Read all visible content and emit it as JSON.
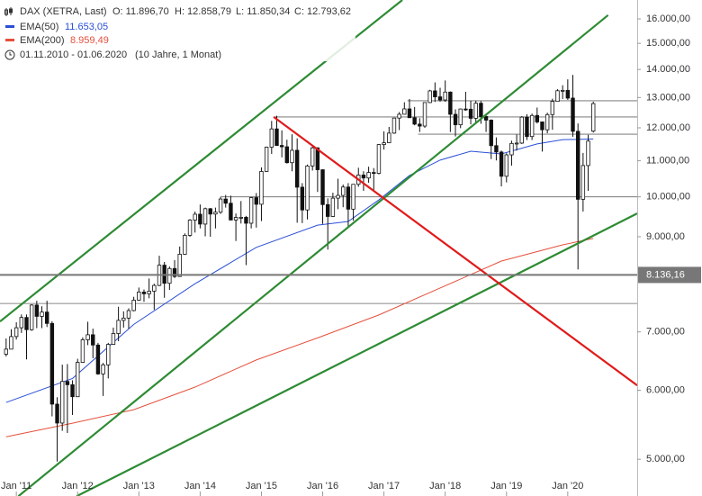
{
  "chart_data": {
    "type": "candlestick",
    "header": {
      "title": "DAX (XETRA, Last)",
      "o": "O: 11.896,70",
      "h": "H: 12.858,79",
      "l": "L: 11.850,34",
      "c": "C: 12.793,62",
      "range": "01.11.2010 - 01.06.2020",
      "period": "(10 Jahre, 1 Monat)"
    },
    "log_scale": true,
    "xlim": [
      -1.2,
      123.6
    ],
    "ylim": [
      4770,
      16820
    ],
    "xticks": [
      {
        "value": 2,
        "label": "Jan '11"
      },
      {
        "value": 14,
        "label": "Jan '12"
      },
      {
        "value": 26,
        "label": "Jan '13"
      },
      {
        "value": 38,
        "label": "Jan '14"
      },
      {
        "value": 50,
        "label": "Jan '15"
      },
      {
        "value": 62,
        "label": "Jan '16"
      },
      {
        "value": 74,
        "label": "Jan '17"
      },
      {
        "value": 86,
        "label": "Jan '18"
      },
      {
        "value": 98,
        "label": "Jan '19"
      },
      {
        "value": 110,
        "label": "Jan '20"
      }
    ],
    "yticks": [
      {
        "value": 5000,
        "label": "5.000,00"
      },
      {
        "value": 6000,
        "label": "6.000,00"
      },
      {
        "value": 7000,
        "label": "7.000,00"
      },
      {
        "value": 9000,
        "label": "9.000,00"
      },
      {
        "value": 10000,
        "label": "10.000,00"
      },
      {
        "value": 11000,
        "label": "11.000,00"
      },
      {
        "value": 12000,
        "label": "12.000,00"
      },
      {
        "value": 13000,
        "label": "13.000,00"
      },
      {
        "value": 14000,
        "label": "14.000,00"
      },
      {
        "value": 15000,
        "label": "15.000,00"
      },
      {
        "value": 16000,
        "label": "16.000,00"
      }
    ],
    "up_color": "#ffffff",
    "down_color": "#111111",
    "ohlc": [
      [
        6600,
        6880,
        6560,
        6688
      ],
      [
        6688,
        7050,
        6690,
        6914
      ],
      [
        6914,
        7180,
        6860,
        7077
      ],
      [
        7077,
        7330,
        6980,
        7272
      ],
      [
        7272,
        7330,
        6510,
        7041
      ],
      [
        7041,
        7530,
        7020,
        7514
      ],
      [
        7514,
        7600,
        7070,
        7293
      ],
      [
        7293,
        7490,
        7070,
        7376
      ],
      [
        7376,
        7600,
        7090,
        7158
      ],
      [
        7158,
        7200,
        5600,
        5784
      ],
      [
        5784,
        5890,
        4970,
        5502
      ],
      [
        5502,
        6420,
        5390,
        6141
      ],
      [
        6141,
        6430,
        5360,
        6088
      ],
      [
        6088,
        6160,
        5620,
        5898
      ],
      [
        5898,
        6520,
        5900,
        6458
      ],
      [
        6458,
        6900,
        6450,
        6856
      ],
      [
        6856,
        7190,
        6760,
        6947
      ],
      [
        6947,
        7060,
        6530,
        6761
      ],
      [
        6761,
        6800,
        6250,
        6264
      ],
      [
        6264,
        6450,
        5910,
        6416
      ],
      [
        6416,
        6800,
        6190,
        6772
      ],
      [
        6772,
        7080,
        6790,
        6970
      ],
      [
        6970,
        7480,
        6830,
        7216
      ],
      [
        7216,
        7390,
        7080,
        7260
      ],
      [
        7260,
        7450,
        7060,
        7405
      ],
      [
        7405,
        7680,
        7390,
        7612
      ],
      [
        7612,
        7870,
        7600,
        7776
      ],
      [
        7776,
        7830,
        7580,
        7741
      ],
      [
        7741,
        8060,
        7650,
        7795
      ],
      [
        7795,
        7950,
        7420,
        7914
      ],
      [
        7914,
        8560,
        7900,
        8349
      ],
      [
        8349,
        8420,
        7660,
        7959
      ],
      [
        7959,
        8320,
        7820,
        8276
      ],
      [
        8276,
        8460,
        8070,
        8103
      ],
      [
        8103,
        8770,
        8100,
        8594
      ],
      [
        8594,
        9080,
        8580,
        9033
      ],
      [
        9033,
        9430,
        9000,
        9405
      ],
      [
        9405,
        9620,
        9100,
        9552
      ],
      [
        9552,
        9800,
        9200,
        9306
      ],
      [
        9306,
        9720,
        9010,
        9692
      ],
      [
        9692,
        9710,
        9000,
        9556
      ],
      [
        9556,
        9720,
        9200,
        9603
      ],
      [
        9603,
        10000,
        9560,
        9943
      ],
      [
        9943,
        10050,
        9720,
        9833
      ],
      [
        9833,
        10030,
        9400,
        9407
      ],
      [
        9407,
        9570,
        8900,
        9470
      ],
      [
        9470,
        9890,
        9320,
        9474
      ],
      [
        9474,
        9510,
        8350,
        9327
      ],
      [
        9327,
        10000,
        9200,
        9980
      ],
      [
        9980,
        10100,
        9220,
        9806
      ],
      [
        9806,
        10810,
        9380,
        10694
      ],
      [
        10694,
        11420,
        10690,
        11402
      ],
      [
        11402,
        12220,
        11200,
        11966
      ],
      [
        11966,
        12390,
        11450,
        11454
      ],
      [
        11454,
        11920,
        11100,
        11414
      ],
      [
        11414,
        11630,
        10920,
        10945
      ],
      [
        10945,
        11800,
        10700,
        11309
      ],
      [
        11309,
        11670,
        9340,
        10259
      ],
      [
        10259,
        10370,
        9330,
        9660
      ],
      [
        9660,
        10890,
        9420,
        10850
      ],
      [
        10850,
        11430,
        10720,
        11382
      ],
      [
        11382,
        11400,
        10130,
        10743
      ],
      [
        10743,
        10750,
        9310,
        9798
      ],
      [
        9798,
        9960,
        8700,
        9495
      ],
      [
        9495,
        10110,
        9480,
        9966
      ],
      [
        9966,
        10490,
        9680,
        10039
      ],
      [
        10039,
        10330,
        9730,
        10263
      ],
      [
        10263,
        10370,
        9210,
        9680
      ],
      [
        9680,
        10340,
        9390,
        10337
      ],
      [
        10337,
        10800,
        10270,
        10593
      ],
      [
        10593,
        10700,
        10160,
        10511
      ],
      [
        10511,
        10830,
        10380,
        10665
      ],
      [
        10665,
        10790,
        10170,
        10640
      ],
      [
        10640,
        11500,
        10610,
        11481
      ],
      [
        11481,
        11890,
        11330,
        11535
      ],
      [
        11535,
        12030,
        11530,
        11834
      ],
      [
        11834,
        12320,
        11810,
        12313
      ],
      [
        12313,
        12510,
        11930,
        12438
      ],
      [
        12438,
        12840,
        12430,
        12615
      ],
      [
        12615,
        12950,
        12320,
        12325
      ],
      [
        12325,
        12680,
        12080,
        12118
      ],
      [
        12118,
        12310,
        11870,
        12056
      ],
      [
        12056,
        12840,
        12000,
        12829
      ],
      [
        12829,
        13270,
        12810,
        13230
      ],
      [
        13230,
        13530,
        12850,
        13024
      ],
      [
        13024,
        13340,
        12860,
        12918
      ],
      [
        12918,
        13600,
        12850,
        13189
      ],
      [
        13189,
        13210,
        11870,
        12436
      ],
      [
        12436,
        12600,
        11730,
        12097
      ],
      [
        12097,
        12630,
        11990,
        12612
      ],
      [
        12612,
        13200,
        12550,
        12605
      ],
      [
        12605,
        12890,
        12110,
        12306
      ],
      [
        12306,
        12890,
        12150,
        12806
      ],
      [
        12806,
        12880,
        12130,
        12364
      ],
      [
        12364,
        12460,
        11870,
        12247
      ],
      [
        12247,
        12270,
        11050,
        11448
      ],
      [
        11448,
        11700,
        11010,
        11257
      ],
      [
        11257,
        11300,
        10280,
        10559
      ],
      [
        10559,
        11220,
        10390,
        11173
      ],
      [
        11173,
        11600,
        10860,
        11516
      ],
      [
        11516,
        11790,
        11300,
        11526
      ],
      [
        11526,
        12380,
        11500,
        12344
      ],
      [
        12344,
        12440,
        11620,
        11727
      ],
      [
        11727,
        12460,
        11620,
        12399
      ],
      [
        12399,
        12660,
        12140,
        12189
      ],
      [
        12189,
        12200,
        11270,
        11939
      ],
      [
        11939,
        12490,
        11830,
        12428
      ],
      [
        12428,
        12960,
        11940,
        12867
      ],
      [
        12867,
        13290,
        12860,
        13236
      ],
      [
        13236,
        13430,
        12950,
        13249
      ],
      [
        13249,
        13640,
        12920,
        12981
      ],
      [
        12981,
        13800,
        11720,
        11890
      ],
      [
        11890,
        12140,
        8256,
        9936
      ],
      [
        9936,
        11230,
        9620,
        10862
      ],
      [
        10862,
        11780,
        10160,
        11587
      ],
      [
        11896.7,
        12858.79,
        11850.34,
        12793.62
      ]
    ],
    "series": [
      {
        "name": "EMA(50)",
        "legend_value": "11.653,05",
        "color": "#2a4fd6",
        "x": [
          0,
          13,
          25,
          37,
          49,
          61,
          67,
          73,
          79,
          85,
          91,
          97,
          104,
          109,
          115
        ],
        "values": [
          5810,
          6190,
          7140,
          7950,
          8750,
          9280,
          9370,
          9920,
          10580,
          11020,
          11280,
          11200,
          11500,
          11630,
          11653.05
        ]
      },
      {
        "name": "EMA(200)",
        "legend_value": "8.959,49",
        "color": "#e5503c",
        "x": [
          0,
          13,
          25,
          37,
          49,
          61,
          73,
          85,
          97,
          109,
          115
        ],
        "values": [
          5306,
          5500,
          5700,
          6050,
          6500,
          6890,
          7320,
          7860,
          8440,
          8810,
          8959.49
        ]
      }
    ],
    "trendlines": [
      {
        "color": "#2e8b34",
        "x": [
          -1.2,
          77.6
        ],
        "values": [
          7195,
          16820
        ]
      },
      {
        "color": "#2e8b34",
        "x": [
          2.4,
          117.9
        ],
        "values": [
          4535,
          16160
        ]
      },
      {
        "color": "#2e8b34",
        "x": [
          13.8,
          123.6
        ],
        "values": [
          4535,
          9570
        ]
      },
      {
        "color": "#e01b1b",
        "x": [
          52.4,
          123.6
        ],
        "values": [
          12350,
          6077
        ]
      }
    ],
    "levels": [
      {
        "x0": 78.6,
        "value": 12890
      },
      {
        "x0": 52.4,
        "value": 12350
      },
      {
        "x0": 80.7,
        "value": 11800
      },
      {
        "x0": 42,
        "value": 10000
      },
      {
        "x0": -1.2,
        "value": 7545
      }
    ],
    "marker": {
      "value": 8136.16,
      "label": "8.136,16",
      "color": "#777777"
    }
  }
}
